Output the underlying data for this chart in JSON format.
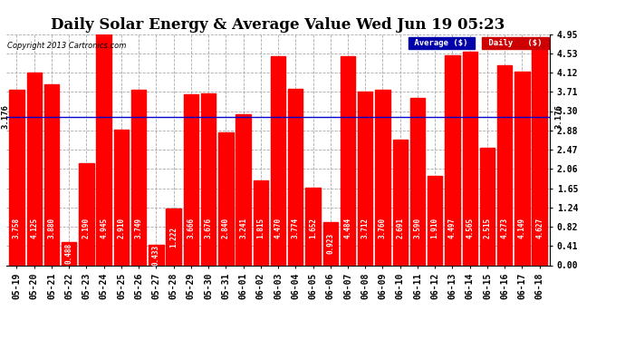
{
  "title": "Daily Solar Energy & Average Value Wed Jun 19 05:23",
  "copyright": "Copyright 2013 Cartronics.com",
  "categories": [
    "05-19",
    "05-20",
    "05-21",
    "05-22",
    "05-23",
    "05-24",
    "05-25",
    "05-26",
    "05-27",
    "05-28",
    "05-29",
    "05-30",
    "05-31",
    "06-01",
    "06-02",
    "06-03",
    "06-04",
    "06-05",
    "06-06",
    "06-07",
    "06-08",
    "06-09",
    "06-10",
    "06-11",
    "06-12",
    "06-13",
    "06-14",
    "06-15",
    "06-16",
    "06-17",
    "06-18"
  ],
  "values": [
    3.758,
    4.125,
    3.88,
    0.488,
    2.19,
    4.945,
    2.91,
    3.749,
    0.433,
    1.222,
    3.666,
    3.676,
    2.84,
    3.241,
    1.815,
    4.47,
    3.774,
    1.652,
    0.923,
    4.484,
    3.712,
    3.76,
    2.691,
    3.59,
    1.91,
    4.497,
    4.565,
    2.515,
    4.273,
    4.149,
    4.627
  ],
  "average": 3.176,
  "bar_color": "#ff0000",
  "average_line_color": "#0000cc",
  "background_color": "#ffffff",
  "plot_bg_color": "#ffffff",
  "grid_color": "#aaaaaa",
  "ylim": [
    0,
    4.95
  ],
  "yticks": [
    0.0,
    0.41,
    0.82,
    1.24,
    1.65,
    2.06,
    2.47,
    2.88,
    3.3,
    3.71,
    4.12,
    4.53,
    4.95
  ],
  "title_fontsize": 12,
  "tick_fontsize": 7,
  "label_fontsize": 5.5,
  "avg_label": "Average ($)",
  "daily_label": "Daily   ($)"
}
